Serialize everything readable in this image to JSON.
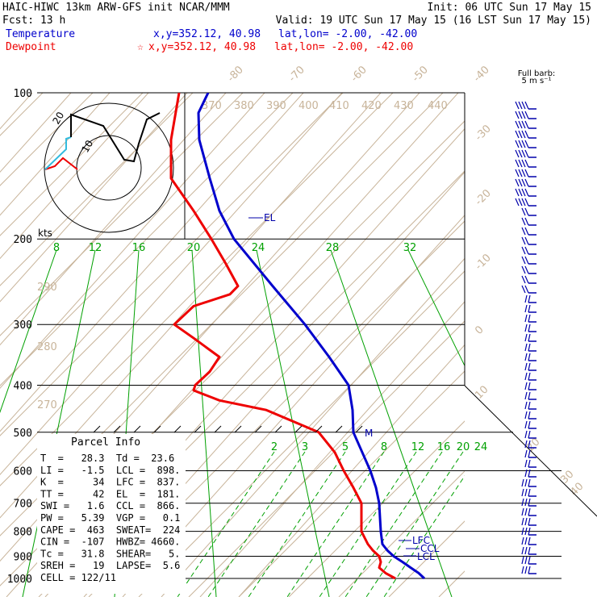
{
  "header": {
    "title": "HAIC-HIWC 13km ARW-GFS init   NCAR/MMM",
    "init": "Init: 06 UTC Sun 17 May 15",
    "fcst": "Fcst:   13 h",
    "valid": "Valid: 19 UTC Sun 17 May 15 (16 LST Sun 17 May 15)",
    "temperature_label": "Temperature",
    "temperature_xy": "x,y=352.12, 40.98",
    "temperature_latlon": "lat,lon= -2.00, -42.00",
    "dewpoint_label": "Dewpoint",
    "dewpoint_star": "☆",
    "dewpoint_xy": "x,y=352.12, 40.98",
    "dewpoint_latlon": "lat,lon= -2.00, -42.00"
  },
  "barb_legend": {
    "line1": "Full barb:",
    "line2": "5 m s⁻¹"
  },
  "parcel_info": {
    "title": "Parcel Info",
    "rows": [
      "T  =   28.3  Td =  23.6",
      "LI =   -1.5  LCL =  898.",
      "K  =     34  LFC =  837.",
      "TT =     42  EL  =  181.",
      "SWI =   1.6  CCL =  866.",
      "PW =   5.39  VGP =   0.1",
      "CAPE =  463  SWEAT=  224",
      "CIN =  -107  HWBZ= 4660.",
      "Tc =   31.8  SHEAR=   5.",
      "SREH =   19  LAPSE=  5.6",
      "CELL = 122/11"
    ]
  },
  "hodograph": {
    "ring_labels": [
      "20",
      "10"
    ],
    "units": "kts"
  },
  "colors": {
    "temperature": "#0000cc",
    "dewpoint": "#ee0000",
    "isotherm": "#c8b49a",
    "mixing_ratio": "#00a000",
    "wind": "#0000aa",
    "text": "#000000"
  },
  "chart_data": {
    "type": "line",
    "title": "",
    "xlabel": "",
    "ylabel": "",
    "pressure_levels": [
      100,
      200,
      300,
      400,
      500,
      600,
      700,
      800,
      900,
      1000
    ],
    "top_isotherm_labels": [
      "-80",
      "-70",
      "-60",
      "-50",
      "-40"
    ],
    "right_isotherm_labels": [
      "-30",
      "-20",
      "-10",
      "0",
      "10",
      "20",
      "30",
      "40"
    ],
    "theta_labels": [
      "370",
      "380",
      "390",
      "400",
      "410",
      "420",
      "430",
      "440"
    ],
    "dry_adiabat_labels": [
      "290",
      "280",
      "270"
    ],
    "mixing_ratio_labels_upper": [
      "8",
      "12",
      "16",
      "20",
      "24",
      "28",
      "32"
    ],
    "mixing_ratio_labels_lower": [
      "2",
      "3",
      "5",
      "8",
      "12",
      "16",
      "20",
      "24"
    ],
    "series": [
      {
        "name": "Temperature",
        "pressure": [
          1000,
          975,
          950,
          925,
          900,
          875,
          850,
          800,
          750,
          700,
          650,
          600,
          550,
          500,
          450,
          400,
          350,
          300,
          250,
          200,
          175,
          150,
          125,
          110,
          100
        ],
        "x_pos": [
          526,
          519,
          509,
          499,
          488,
          480,
          474,
          472,
          471,
          470,
          466,
          459,
          449,
          438,
          437,
          432,
          408,
          378,
          338,
          290,
          272,
          260,
          247,
          246,
          258
        ]
      },
      {
        "name": "Dewpoint",
        "pressure": [
          1000,
          975,
          950,
          925,
          900,
          875,
          850,
          800,
          750,
          700,
          650,
          600,
          550,
          500,
          450,
          430,
          410,
          400,
          375,
          350,
          320,
          300,
          275,
          260,
          250,
          225,
          200,
          175,
          150,
          125,
          100
        ],
        "x_pos": [
          490,
          478,
          470,
          472,
          470,
          462,
          456,
          448,
          448,
          448,
          438,
          426,
          415,
          395,
          330,
          272,
          240,
          242,
          260,
          272,
          240,
          216,
          240,
          285,
          295,
          280,
          262,
          240,
          212,
          212,
          222
        ]
      }
    ],
    "markers": [
      "EL",
      "LFC",
      "CCL",
      "LCL",
      "M"
    ],
    "wind_barbs_note": "right-edge wind barbs, all levels 100-1000 hPa"
  }
}
